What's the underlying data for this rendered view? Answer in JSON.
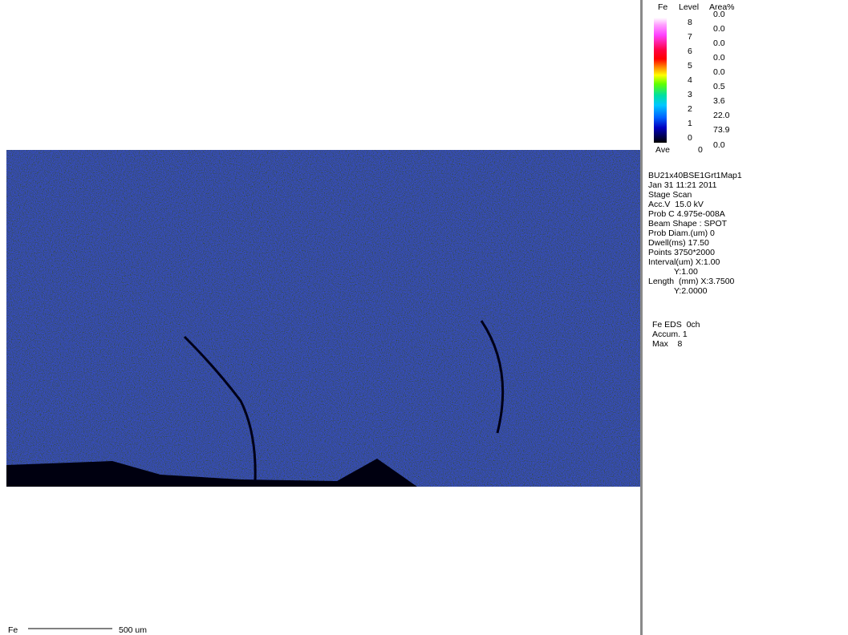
{
  "legend": {
    "element": "Fe",
    "level_header": "Level",
    "area_header": "Area%",
    "levels": [
      "8",
      "7",
      "6",
      "5",
      "4",
      "3",
      "2",
      "1",
      "0"
    ],
    "areas": [
      "0.0",
      "0.0",
      "0.0",
      "0.0",
      "0.0",
      "0.5",
      "3.6",
      "22.0",
      "73.9"
    ],
    "ave_label": "Ave",
    "ave_value": "0",
    "ave_area": "0.0"
  },
  "info": [
    "BU21x40BSE1Grt1Map1",
    "Jan 31 11:21 2011",
    "Stage Scan",
    "Acc.V  15.0 kV",
    "Prob C 4.975e-008A",
    "Beam Shape : SPOT",
    "Prob Diam.(um) 0",
    "Dwell(ms) 17.50",
    "Points 3750*2000",
    "Interval(um) X:1.00",
    "Y:1.00",
    "Length  (mm) X:3.7500",
    "Y:2.0000"
  ],
  "channel": [
    "Fe EDS  0ch",
    "Accum. 1",
    "Max    8"
  ],
  "scale_bar": {
    "element": "Fe",
    "label": "500 um"
  }
}
